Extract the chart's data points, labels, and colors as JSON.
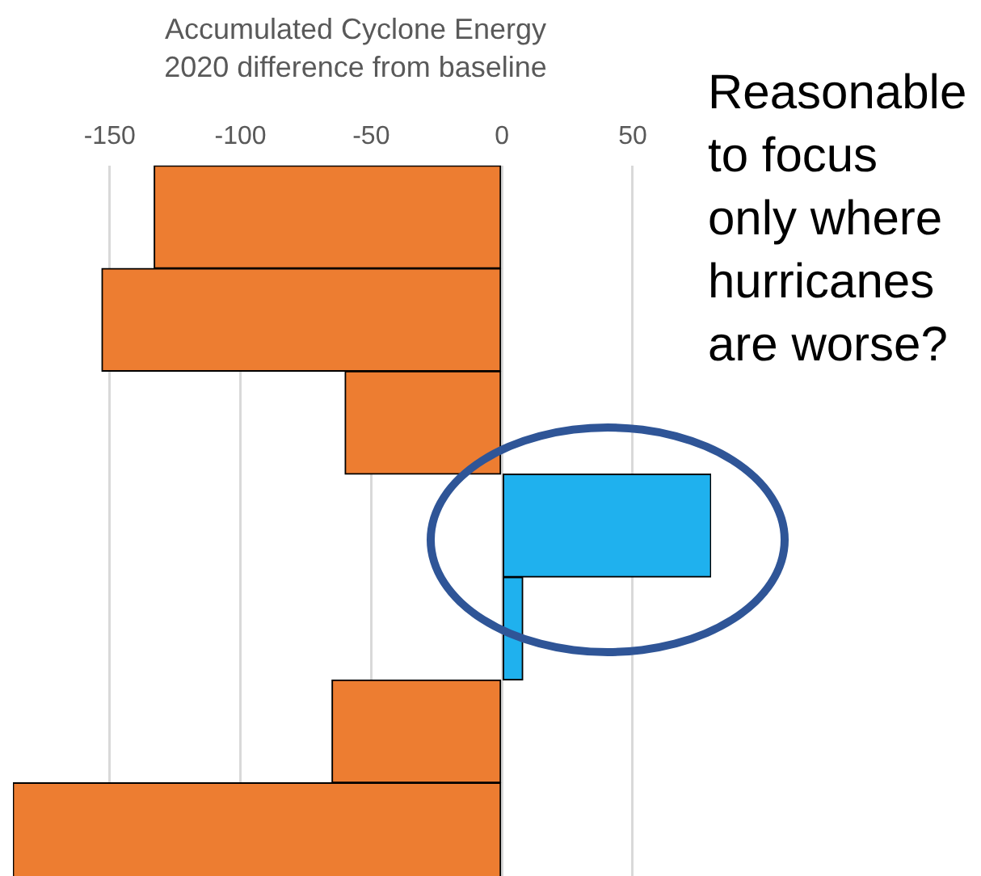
{
  "chart_data": {
    "type": "bar",
    "orientation": "horizontal",
    "title": "Accumulated Cyclone Energy",
    "subtitle": "2020 difference from baseline",
    "categories": [
      null,
      null,
      null,
      null,
      null,
      null,
      null
    ],
    "values": [
      -133,
      -153,
      -60,
      80,
      8,
      -65,
      -187
    ],
    "colors": [
      "#ed7d31",
      "#ed7d31",
      "#ed7d31",
      "#1fb1ee",
      "#1fb1ee",
      "#ed7d31",
      "#ed7d31"
    ],
    "xlim": [
      -187,
      80
    ],
    "xticks": [
      -150,
      -100,
      -50,
      0,
      50
    ],
    "grid": "x",
    "legend": false,
    "annotations": [
      "Reasonable to focus only where hurricanes are worse?"
    ]
  }
}
